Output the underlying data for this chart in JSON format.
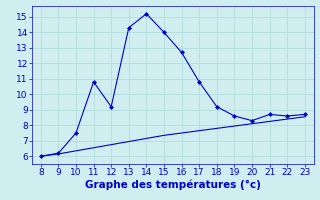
{
  "x": [
    8,
    9,
    10,
    11,
    12,
    13,
    14,
    15,
    16,
    17,
    18,
    19,
    20,
    21,
    22,
    23
  ],
  "y_temp": [
    6.0,
    6.2,
    7.5,
    10.8,
    9.2,
    14.3,
    15.2,
    14.0,
    12.7,
    10.8,
    9.2,
    8.6,
    8.3,
    8.7,
    8.6,
    8.7
  ],
  "y_trend": [
    6.0,
    6.15,
    6.35,
    6.55,
    6.75,
    6.95,
    7.15,
    7.35,
    7.5,
    7.65,
    7.8,
    7.95,
    8.1,
    8.25,
    8.4,
    8.55
  ],
  "line_color": "#0000cc",
  "bg_color": "#d0eef0",
  "grid_color": "#b0d8da",
  "xlabel": "Graphe des températures (°c)",
  "xlim": [
    7.5,
    23.5
  ],
  "ylim": [
    5.5,
    15.7
  ],
  "xticks": [
    8,
    9,
    10,
    11,
    12,
    13,
    14,
    15,
    16,
    17,
    18,
    19,
    20,
    21,
    22,
    23
  ],
  "yticks": [
    6,
    7,
    8,
    9,
    10,
    11,
    12,
    13,
    14,
    15
  ],
  "xlabel_fontsize": 7.5,
  "tick_fontsize": 6.5
}
